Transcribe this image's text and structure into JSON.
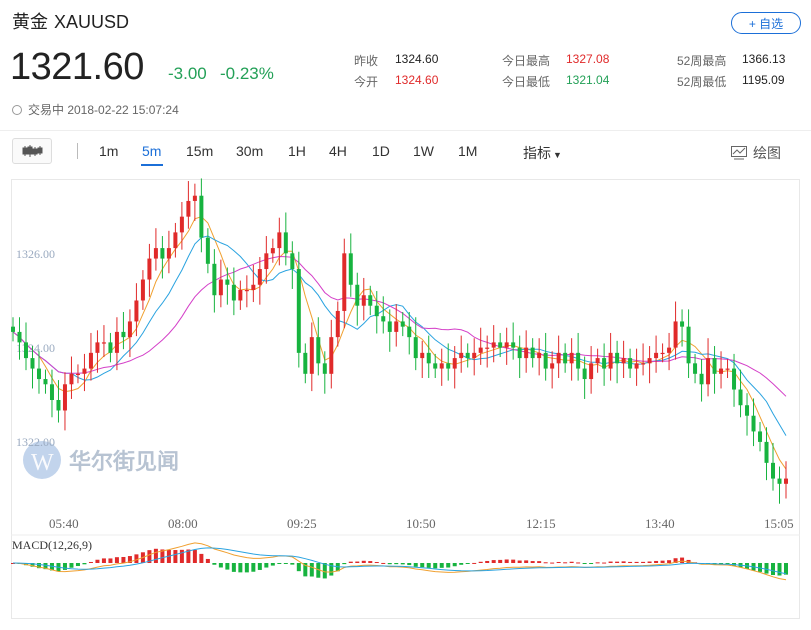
{
  "header": {
    "name": "黄金",
    "symbol": "XAUUSD",
    "add_label": "+ 自选"
  },
  "quote": {
    "price": "1321.60",
    "change": "-3.00",
    "change_pct": "-0.23%",
    "status": "交易中 2018-02-22 15:07:24"
  },
  "stats": [
    {
      "label": "昨收",
      "value": "1324.60",
      "color": "#222222"
    },
    {
      "label": "今开",
      "value": "1324.60",
      "color": "#e02a2a"
    },
    {
      "label": "今日最高",
      "value": "1327.08",
      "color": "#e02a2a"
    },
    {
      "label": "今日最低",
      "value": "1321.04",
      "color": "#23a057"
    },
    {
      "label": "52周最高",
      "value": "1366.13",
      "color": "#222222"
    },
    {
      "label": "52周最低",
      "value": "1195.09",
      "color": "#222222"
    }
  ],
  "toolbar": {
    "timeframes": [
      "1m",
      "5m",
      "15m",
      "30m",
      "1H",
      "4H",
      "1D",
      "1W",
      "1M"
    ],
    "active": "5m",
    "indicator_label": "指标",
    "draw_label": "绘图"
  },
  "watermark": "华尔街见闻",
  "colors": {
    "up": "#e02a2a",
    "down": "#17b33f",
    "accent": "#1b6fd8",
    "ma_orange": "#f0a030",
    "ma_blue": "#2aa3e0",
    "ma_pink": "#d43fc8"
  },
  "chart_data": {
    "type": "candlestick",
    "y_ticks": [
      "1326.00",
      "1324.00",
      "1322.00"
    ],
    "y_tick_values": [
      1326,
      1324,
      1322
    ],
    "ylim": [
      1321.0,
      1327.3
    ],
    "x_ticks": [
      "05:40",
      "08:00",
      "09:25",
      "10:50",
      "12:15",
      "13:40",
      "15:05"
    ],
    "indicator_label": "MACD(12,26,9)",
    "closes": [
      1324.4,
      1324.2,
      1323.9,
      1323.7,
      1323.5,
      1323.4,
      1323.1,
      1322.9,
      1323.4,
      1323.6,
      1323.6,
      1323.7,
      1324.0,
      1324.2,
      1324.2,
      1324.0,
      1324.4,
      1324.3,
      1324.6,
      1325.0,
      1325.4,
      1325.8,
      1326.0,
      1325.8,
      1326.0,
      1326.3,
      1326.6,
      1326.9,
      1327.0,
      1326.2,
      1325.7,
      1325.1,
      1325.4,
      1325.3,
      1325.0,
      1325.2,
      1325.2,
      1325.3,
      1325.6,
      1325.9,
      1326.0,
      1326.3,
      1325.9,
      1325.6,
      1324.0,
      1323.6,
      1324.3,
      1323.8,
      1323.6,
      1324.3,
      1324.8,
      1325.9,
      1325.3,
      1324.9,
      1325.1,
      1324.9,
      1324.7,
      1324.6,
      1324.4,
      1324.6,
      1324.5,
      1324.3,
      1323.9,
      1324.0,
      1323.8,
      1323.7,
      1323.8,
      1323.7,
      1323.9,
      1324.0,
      1323.9,
      1324.0,
      1324.1,
      1324.1,
      1324.2,
      1324.1,
      1324.2,
      1324.1,
      1323.9,
      1324.1,
      1323.9,
      1324.0,
      1323.7,
      1323.8,
      1324.0,
      1323.8,
      1324.0,
      1323.7,
      1323.5,
      1323.8,
      1323.9,
      1323.7,
      1324.0,
      1323.8,
      1323.9,
      1323.7,
      1323.8,
      1323.8,
      1323.9,
      1324.0,
      1324.0,
      1324.1,
      1324.6,
      1324.5,
      1323.8,
      1323.6,
      1323.4,
      1323.9,
      1323.6,
      1323.7,
      1323.7,
      1323.3,
      1323.0,
      1322.8,
      1322.5,
      1322.3,
      1321.9,
      1321.6,
      1321.5,
      1321.6
    ]
  }
}
